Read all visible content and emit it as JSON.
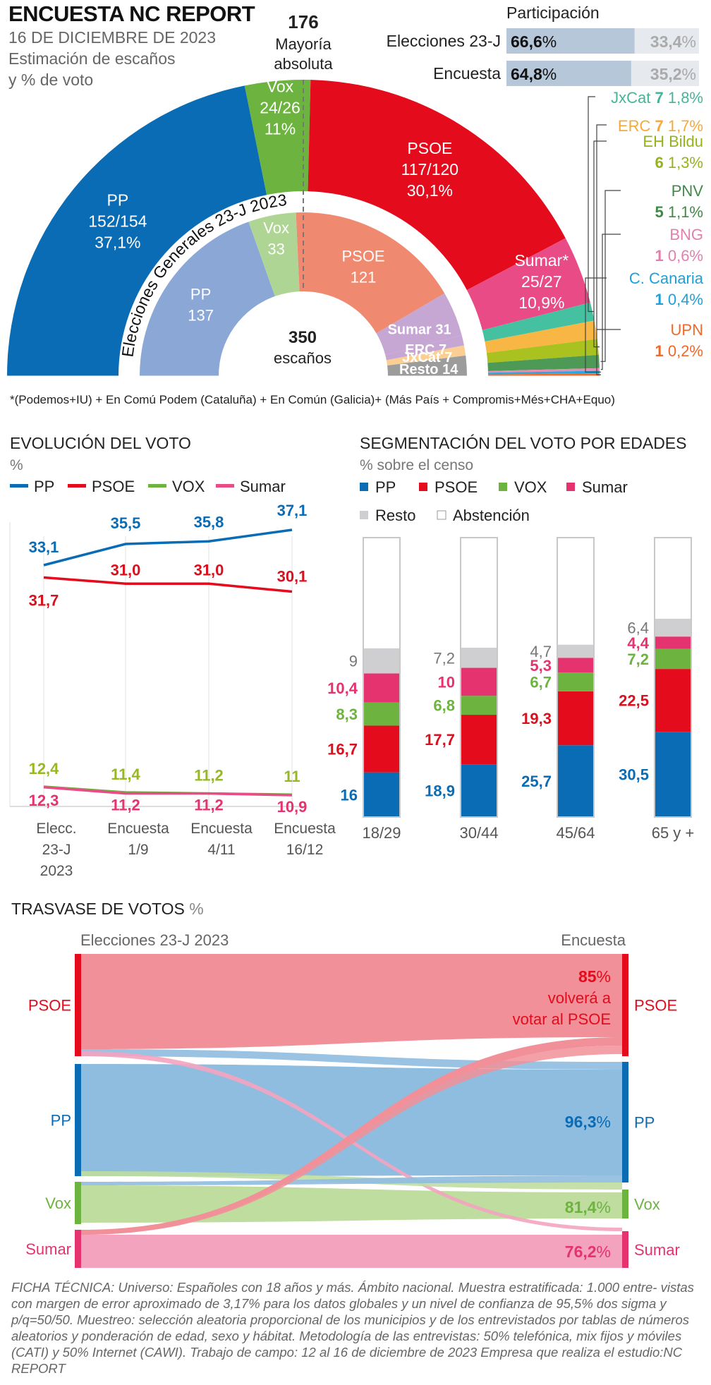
{
  "header": {
    "title": "ENCUESTA NC REPORT",
    "date": "16 DE DICIEMBRE DE 2023",
    "line1": "Estimación de escaños",
    "line2": "y % de voto"
  },
  "majority": {
    "number": "176",
    "line1": "Mayoría",
    "line2": "absoluta"
  },
  "participation": {
    "title": "Participación",
    "rows": [
      {
        "label": "Elecciones 23-J",
        "value_text": "66,6%",
        "rest_text": "33,4%",
        "value": 66.6
      },
      {
        "label": "Encuesta",
        "value_text": "64,8%",
        "rest_text": "35,2%",
        "value": 64.8
      }
    ]
  },
  "hemicycle": {
    "total_number": "350",
    "total_label": "escaños",
    "inner_title": "Elecciones Generales 23-J 2023",
    "footnote": "*(Podemos+IU) + En Comú Podem (Cataluña) + En Común (Galicia)+ (Más País + Compromis+Més+CHA+Equo)",
    "outer": [
      {
        "name": "PP",
        "l1": "PP",
        "l2": "152/154",
        "l3": "37,1%",
        "seats": 153,
        "color": "#0a6cb5"
      },
      {
        "name": "Vox",
        "l1": "Vox",
        "l2": "24/26",
        "l3": "11%",
        "seats": 25,
        "color": "#6db33f"
      },
      {
        "name": "PSOE",
        "l1": "PSOE",
        "l2": "117/120",
        "l3": "30,1%",
        "seats": 118.5,
        "color": "#e30b1c"
      },
      {
        "name": "Sumar",
        "l1": "Sumar*",
        "l2": "25/27",
        "l3": "10,9%",
        "seats": 26,
        "color": "#e94b86"
      },
      {
        "name": "JxCat",
        "seats": 7,
        "color": "#45c0a0"
      },
      {
        "name": "ERC",
        "seats": 7,
        "color": "#f8b644"
      },
      {
        "name": "EH Bildu",
        "seats": 6,
        "color": "#a9c21f"
      },
      {
        "name": "PNV",
        "seats": 5,
        "color": "#4c9a55"
      },
      {
        "name": "BNG",
        "seats": 1,
        "color": "#e88bb5"
      },
      {
        "name": "C. Canaria",
        "seats": 1,
        "color": "#2aa7dc"
      },
      {
        "name": "UPN",
        "seats": 1,
        "color": "#ef6c2f"
      }
    ],
    "inner": [
      {
        "name": "PP",
        "l1": "PP",
        "l2": "137",
        "seats": 137,
        "color": "#8ba7d6"
      },
      {
        "name": "Vox",
        "l1": "Vox",
        "l2": "33",
        "seats": 33,
        "color": "#aed594"
      },
      {
        "name": "PSOE",
        "l1": "PSOE",
        "l2": "121",
        "seats": 121,
        "color": "#ef8a70"
      },
      {
        "name": "Sumar",
        "l1": "Sumar 31",
        "seats": 31,
        "color": "#c6a6d2"
      },
      {
        "name": "ERC",
        "l1": "ERC 7",
        "seats": 7,
        "color": "#c6a6d2"
      },
      {
        "name": "JxCat",
        "l1": "JxCat 7",
        "seats": 7,
        "color": "#fbcf94"
      },
      {
        "name": "Resto",
        "l1": "Resto 14",
        "seats": 14,
        "color": "#9c9c9c"
      }
    ],
    "small_labels": [
      {
        "name": "JxCat",
        "seats": "7",
        "pct": "1,8%",
        "color": "#45b59a"
      },
      {
        "name": "ERC",
        "seats": "7",
        "pct": "1,7%",
        "color": "#f4a93a"
      },
      {
        "name": "EH Bildu",
        "seats": "6",
        "pct": "1,3%",
        "color": "#96b21b"
      },
      {
        "name": "PNV",
        "seats": "5",
        "pct": "1,1%",
        "color": "#3f8a47"
      },
      {
        "name": "BNG",
        "seats": "1",
        "pct": "0,6%",
        "color": "#e27fae"
      },
      {
        "name": "C. Canaria",
        "seats": "1",
        "pct": "0,4%",
        "color": "#1fa0d8"
      },
      {
        "name": "UPN",
        "seats": "1",
        "pct": "0,2%",
        "color": "#ec6a2b"
      }
    ]
  },
  "evolution": {
    "title": "EVOLUCIÓN DEL VOTO",
    "unit": "%",
    "legend": [
      "PP",
      "PSOE",
      "VOX",
      "Sumar"
    ],
    "x_labels": [
      [
        "Elecc.",
        "23-J",
        "2023"
      ],
      [
        "Encuesta",
        "1/9"
      ],
      [
        "Encuesta",
        "4/11"
      ],
      [
        "Encuesta",
        "16/12"
      ]
    ]
  },
  "segmentation": {
    "title": "SEGMENTACIÓN DEL VOTO POR EDADES",
    "unit": "% sobre el censo",
    "legend": [
      "PP",
      "PSOE",
      "VOX",
      "Sumar",
      "Resto",
      "Abstención"
    ],
    "groups": [
      "18/29",
      "30/44",
      "45/64",
      "65 y +"
    ]
  },
  "transfer": {
    "title": "TRASVASE DE VOTOS",
    "unit": "%",
    "left_header": "Elecciones 23-J 2023",
    "right_header": "Encuesta",
    "parties": [
      "PSOE",
      "PP",
      "Vox",
      "Sumar"
    ],
    "psoe_pct": "85%",
    "psoe_l2": "volverá a",
    "psoe_l3": "votar al PSOE",
    "pp_pct": "96,3%",
    "vox_pct": "81,4%",
    "sumar_pct": "76,2%"
  },
  "ficha": "FICHA TÉCNICA: Universo: Españoles con 18 años y más. Ámbito nacional. Muestra estratificada: 1.000 entre- vistas con margen de error aproximado de 3,17% para los datos globales y un nivel de confianza de 95,5% dos sigma y p/q=50/50. Muestreo: selección aleatoria proporcional de los municipios y de los entrevistados por tablas de números aleatorios y ponderación de edad, sexo y hábitat. Metodología de las entrevistas: 50% telefónica, mix fijos y móviles (CATI) y 50% Internet (CAWI). Trabajo de campo: 12 al 16 de diciembre de 2023 Empresa que realiza el estudio:NC REPORT",
  "chart_data": [
    {
      "type": "bar",
      "title": "Participación",
      "categories": [
        "Elecciones 23-J",
        "Encuesta"
      ],
      "values": [
        66.6,
        64.8
      ]
    },
    {
      "type": "pie",
      "title": "ENCUESTA NC REPORT",
      "subtitle": "Estimación de escaños y % de voto",
      "categories": [
        "PP",
        "Vox",
        "PSOE",
        "Sumar*",
        "JxCat",
        "ERC",
        "EH Bildu",
        "PNV",
        "BNG",
        "C. Canaria",
        "UPN"
      ],
      "seats": [
        "152/154",
        "24/26",
        "117/120",
        "25/27",
        "7",
        "7",
        "6",
        "5",
        "1",
        "1",
        "1"
      ],
      "values": [
        37.1,
        11,
        30.1,
        10.9,
        1.8,
        1.7,
        1.3,
        1.1,
        0.6,
        0.4,
        0.2
      ]
    },
    {
      "type": "pie",
      "title": "Elecciones Generales 23-J 2023",
      "categories": [
        "PP",
        "Vox",
        "PSOE",
        "Sumar",
        "ERC",
        "JxCat",
        "Resto"
      ],
      "values": [
        137,
        33,
        121,
        31,
        7,
        7,
        14
      ]
    },
    {
      "type": "line",
      "title": "EVOLUCIÓN DEL VOTO",
      "ylabel": "%",
      "categories": [
        "Elecc. 23-J 2023",
        "Encuesta 1/9",
        "Encuesta 4/11",
        "Encuesta 16/12"
      ],
      "series": [
        {
          "name": "PP",
          "values": [
            33.1,
            35.5,
            35.8,
            37.1
          ],
          "labels": [
            "33,1",
            "35,5",
            "35,8",
            "37,1"
          ],
          "color": "#0a6cb5"
        },
        {
          "name": "PSOE",
          "values": [
            31.7,
            31.0,
            31.0,
            30.1
          ],
          "labels": [
            "31,7",
            "31,0",
            "31,0",
            "30,1"
          ],
          "color": "#e30b1c"
        },
        {
          "name": "VOX",
          "values": [
            12.4,
            11.4,
            11.2,
            11.0
          ],
          "labels": [
            "12,4",
            "11,4",
            "11,2",
            "11"
          ],
          "color": "#6db33f"
        },
        {
          "name": "Sumar",
          "values": [
            12.3,
            11.2,
            11.2,
            10.9
          ],
          "labels": [
            "12,3",
            "11,2",
            "11,2",
            "10,9"
          ],
          "color": "#e94b86"
        }
      ]
    },
    {
      "type": "bar",
      "title": "SEGMENTACIÓN DEL VOTO POR EDADES",
      "ylabel": "% sobre el censo",
      "categories": [
        "18/29",
        "30/44",
        "45/64",
        "65 y +"
      ],
      "series": [
        {
          "name": "PP",
          "values": [
            16,
            18.9,
            25.7,
            30.5
          ],
          "labels": [
            "16",
            "18,9",
            "25,7",
            "30,5"
          ],
          "color": "#0a6cb5"
        },
        {
          "name": "PSOE",
          "values": [
            16.7,
            17.7,
            19.3,
            22.5
          ],
          "labels": [
            "16,7",
            "17,7",
            "19,3",
            "22,5"
          ],
          "color": "#e30b1c"
        },
        {
          "name": "VOX",
          "values": [
            8.3,
            6.8,
            6.7,
            7.2
          ],
          "labels": [
            "8,3",
            "6,8",
            "6,7",
            "7,2"
          ],
          "color": "#6db33f"
        },
        {
          "name": "Sumar",
          "values": [
            10.4,
            10,
            5.3,
            4.4
          ],
          "labels": [
            "10,4",
            "10",
            "5,3",
            "4,4"
          ],
          "color": "#e5336f"
        },
        {
          "name": "Resto",
          "values": [
            9,
            7.2,
            4.7,
            6.4
          ],
          "labels": [
            "9",
            "7,2",
            "4,7",
            "6,4"
          ],
          "color": "#cfcfd1"
        },
        {
          "name": "Abstención",
          "values": [
            39.6,
            39.4,
            38.3,
            29.0
          ],
          "color": "#ffffff"
        }
      ]
    },
    {
      "type": "bar",
      "title": "TRASVASE DE VOTOS",
      "ylabel": "%",
      "categories": [
        "PSOE",
        "PP",
        "Vox",
        "Sumar"
      ],
      "values": [
        85,
        96.3,
        81.4,
        76.2
      ]
    }
  ]
}
